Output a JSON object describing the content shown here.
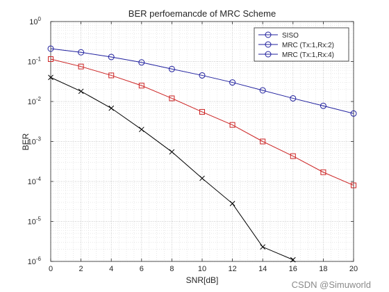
{
  "chart_data": {
    "type": "line",
    "title": "BER perfoemancde of MRC Scheme",
    "xlabel": "SNR[dB]",
    "ylabel": "BER",
    "xlim": [
      0,
      20
    ],
    "ylim": [
      1e-06,
      1
    ],
    "yscale": "log",
    "grid": true,
    "legend_position": "top-right",
    "x_ticks": [
      0,
      2,
      4,
      6,
      8,
      10,
      12,
      14,
      16,
      18,
      20
    ],
    "y_ticks": [
      {
        "value": 1e-06,
        "exp": "-6"
      },
      {
        "value": 1e-05,
        "exp": "-5"
      },
      {
        "value": 0.0001,
        "exp": "-4"
      },
      {
        "value": 0.001,
        "exp": "-3"
      },
      {
        "value": 0.01,
        "exp": "-2"
      },
      {
        "value": 0.1,
        "exp": "-1"
      },
      {
        "value": 1,
        "exp": "0"
      }
    ],
    "y_tick_base": "10",
    "legend": [
      "SISO",
      "MRC (Tx:1,Rx:2)",
      "MRC (Tx:1,Rx:4)"
    ],
    "series": [
      {
        "color": "#000000",
        "marker": "x",
        "x": [
          0,
          2,
          4,
          6,
          8,
          10,
          12,
          14,
          16
        ],
        "y": [
          0.04,
          0.018,
          0.0068,
          0.002,
          0.00055,
          0.00012,
          2.8e-05,
          2.3e-06,
          1.1e-06
        ]
      },
      {
        "color": "#cc2222",
        "marker": "square",
        "x": [
          0,
          2,
          4,
          6,
          8,
          10,
          12,
          14,
          16,
          18,
          20
        ],
        "y": [
          0.115,
          0.075,
          0.045,
          0.025,
          0.012,
          0.0055,
          0.0026,
          0.001,
          0.00043,
          0.00017,
          8e-05
        ]
      },
      {
        "color": "#1f1f9e",
        "marker": "circle",
        "x": [
          0,
          2,
          4,
          6,
          8,
          10,
          12,
          14,
          16,
          18,
          20
        ],
        "y": [
          0.21,
          0.17,
          0.13,
          0.095,
          0.065,
          0.045,
          0.03,
          0.019,
          0.012,
          0.0078,
          0.005
        ]
      }
    ],
    "legend_styles": [
      {
        "color": "#1f1f9e",
        "marker": "circle"
      },
      {
        "color": "#1f1f9e",
        "marker": "circle"
      },
      {
        "color": "#1f1f9e",
        "marker": "circle"
      }
    ]
  },
  "watermark": "CSDN @Simuworld"
}
